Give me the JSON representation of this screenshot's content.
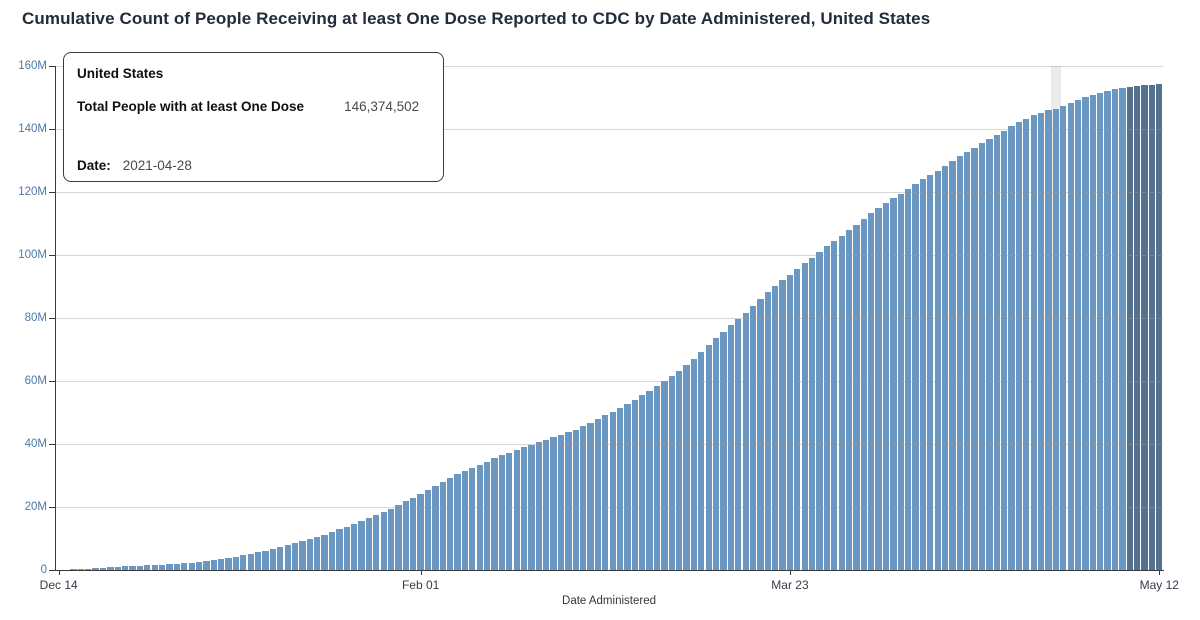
{
  "title": "Cumulative Count of People Receiving at least One Dose Reported to CDC by Date Administered, United States",
  "tooltip": {
    "region": "United States",
    "metric_label": "Total People with at least One Dose",
    "metric_value": "146,374,502",
    "date_label": "Date:",
    "date_value": "2021-04-28"
  },
  "colors": {
    "bar": "#6b97c3",
    "bar_recent": "#54718f",
    "hover_band": "#ebebeb",
    "grid": "#d9d9d9",
    "axis": "#3a3a3a",
    "y_tick_label": "#4e79a7",
    "x_tick_label": "#333d4a",
    "title_text": "#222c3a"
  },
  "chart_data": {
    "type": "bar",
    "title": "Cumulative Count of People Receiving at least One Dose Reported to CDC by Date Administered, United States",
    "xlabel": "Date Administered",
    "ylabel": "",
    "x_start_date": "2020-12-14",
    "x_end_date": "2021-05-12",
    "x_frequency": "daily",
    "n_bars": 150,
    "ylim": [
      0,
      160000000
    ],
    "grid": true,
    "y_ticks": [
      "0",
      "20M",
      "40M",
      "60M",
      "80M",
      "100M",
      "120M",
      "140M",
      "160M"
    ],
    "x_tick_labels": [
      {
        "label": "Dec 14",
        "day_index": 0
      },
      {
        "label": "Feb 01",
        "day_index": 49
      },
      {
        "label": "Mar 23",
        "day_index": 99
      },
      {
        "label": "May 12",
        "day_index": 149
      }
    ],
    "hover_day_index": 135,
    "hover_date": "2021-04-28",
    "hover_value": 146374502,
    "recent_darker_bar_count": 5,
    "values_unit": "millions_of_people",
    "values_millions": [
      0.06,
      0.1,
      0.17,
      0.28,
      0.42,
      0.56,
      0.7,
      0.84,
      0.98,
      1.12,
      1.24,
      1.34,
      1.43,
      1.54,
      1.68,
      1.84,
      2.0,
      2.13,
      2.26,
      2.48,
      2.74,
      3.04,
      3.38,
      3.78,
      4.22,
      4.66,
      5.12,
      5.6,
      6.12,
      6.66,
      7.22,
      7.82,
      8.46,
      9.12,
      9.76,
      10.46,
      11.2,
      12.0,
      12.86,
      13.72,
      14.6,
      15.5,
      16.46,
      17.44,
      18.46,
      19.5,
      20.6,
      21.76,
      22.92,
      24.1,
      25.35,
      26.6,
      27.9,
      29.15,
      30.35,
      31.4,
      32.4,
      33.4,
      34.4,
      35.4,
      36.4,
      37.3,
      38.1,
      38.9,
      39.7,
      40.5,
      41.3,
      42.1,
      42.9,
      43.7,
      44.6,
      45.6,
      46.7,
      47.9,
      49.1,
      50.3,
      51.55,
      52.8,
      54.1,
      55.45,
      56.85,
      58.35,
      59.9,
      61.5,
      63.2,
      65.0,
      67.0,
      69.2,
      71.4,
      73.6,
      75.7,
      77.7,
      79.7,
      81.7,
      83.8,
      86.0,
      88.2,
      90.2,
      92.0,
      93.8,
      95.6,
      97.4,
      99.2,
      101.0,
      102.7,
      104.3,
      106.0,
      107.8,
      109.6,
      111.4,
      113.2,
      114.9,
      116.5,
      118.0,
      119.5,
      121.0,
      122.5,
      124.0,
      125.4,
      126.8,
      128.3,
      129.8,
      131.3,
      132.7,
      134.1,
      135.4,
      136.7,
      138.0,
      139.4,
      140.8,
      142.1,
      143.3,
      144.4,
      145.2,
      145.9,
      146.374502,
      147.4,
      148.3,
      149.3,
      150.2,
      150.9,
      151.5,
      152.1,
      152.6,
      153.0,
      153.4,
      153.7,
      153.9,
      154.05,
      154.15
    ]
  }
}
